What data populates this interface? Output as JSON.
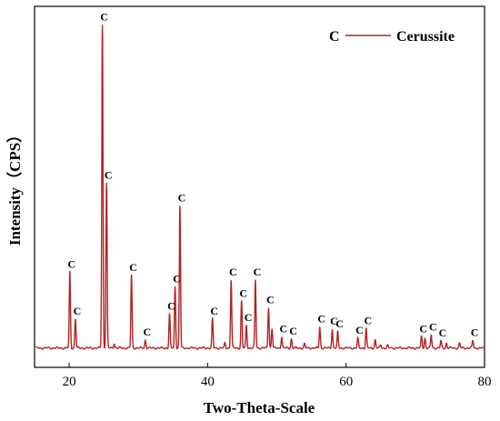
{
  "chart_data": {
    "type": "line",
    "xlabel": "Two-Theta-Scale",
    "ylabel": "Intensity（CPS）",
    "xlim": [
      15,
      80
    ],
    "ylim": [
      0,
      100
    ],
    "x_ticks": [
      "20",
      "40",
      "60",
      "80"
    ],
    "x_tick_values": [
      20,
      40,
      60,
      80
    ],
    "y_ticks_labeled": false,
    "line_color": "#b22222",
    "legend": {
      "marker": "C",
      "label": "Cerussite",
      "position": "top-right"
    },
    "baseline": 1.2,
    "series": [
      {
        "name": "Cerussite",
        "peaks": [
          {
            "x": 20.1,
            "y": 23.5,
            "label": "C"
          },
          {
            "x": 20.9,
            "y": 9.0,
            "label": "C"
          },
          {
            "x": 24.8,
            "y": 100.0,
            "label": "C"
          },
          {
            "x": 25.4,
            "y": 51.0,
            "label": "C"
          },
          {
            "x": 26.5,
            "y": 1.5,
            "label": ""
          },
          {
            "x": 29.0,
            "y": 22.5,
            "label": "C"
          },
          {
            "x": 31.0,
            "y": 2.5,
            "label": "C"
          },
          {
            "x": 34.5,
            "y": 10.5,
            "label": "C"
          },
          {
            "x": 35.3,
            "y": 19.0,
            "label": "C"
          },
          {
            "x": 36.0,
            "y": 44.0,
            "label": "C"
          },
          {
            "x": 40.7,
            "y": 9.0,
            "label": "C"
          },
          {
            "x": 42.5,
            "y": 1.5,
            "label": ""
          },
          {
            "x": 43.4,
            "y": 21.0,
            "label": "C"
          },
          {
            "x": 44.9,
            "y": 14.5,
            "label": "C"
          },
          {
            "x": 45.6,
            "y": 7.0,
            "label": "C"
          },
          {
            "x": 46.9,
            "y": 21.0,
            "label": "C"
          },
          {
            "x": 48.8,
            "y": 12.5,
            "label": "C"
          },
          {
            "x": 49.3,
            "y": 6.0,
            "label": ""
          },
          {
            "x": 50.7,
            "y": 3.5,
            "label": "C"
          },
          {
            "x": 52.1,
            "y": 2.8,
            "label": "C"
          },
          {
            "x": 54.0,
            "y": 1.3,
            "label": ""
          },
          {
            "x": 56.2,
            "y": 6.5,
            "label": "C"
          },
          {
            "x": 58.0,
            "y": 5.8,
            "label": "C"
          },
          {
            "x": 58.8,
            "y": 5.0,
            "label": "C"
          },
          {
            "x": 61.7,
            "y": 3.0,
            "label": "C"
          },
          {
            "x": 62.9,
            "y": 6.0,
            "label": "C"
          },
          {
            "x": 64.2,
            "y": 2.5,
            "label": ""
          },
          {
            "x": 65.0,
            "y": 1.0,
            "label": ""
          },
          {
            "x": 66.0,
            "y": 0.8,
            "label": ""
          },
          {
            "x": 70.9,
            "y": 3.5,
            "label": "C"
          },
          {
            "x": 71.4,
            "y": 3.0,
            "label": ""
          },
          {
            "x": 72.3,
            "y": 4.0,
            "label": "C"
          },
          {
            "x": 73.7,
            "y": 2.2,
            "label": "C"
          },
          {
            "x": 74.5,
            "y": 1.5,
            "label": ""
          },
          {
            "x": 76.4,
            "y": 1.5,
            "label": ""
          },
          {
            "x": 78.3,
            "y": 2.3,
            "label": "C"
          }
        ]
      }
    ]
  }
}
